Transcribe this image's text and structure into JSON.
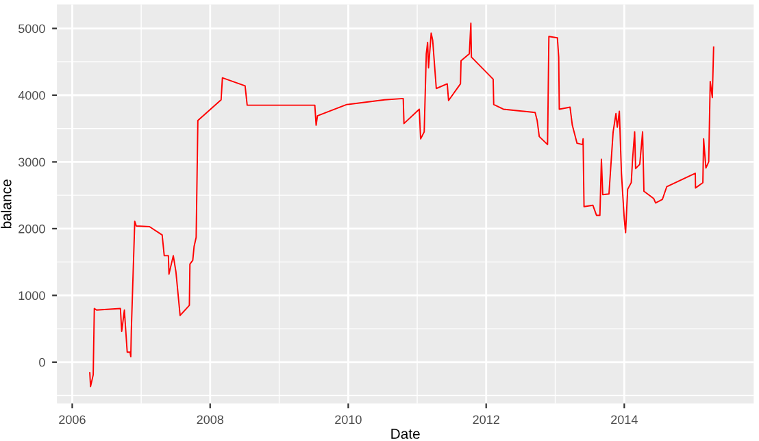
{
  "chart_data": {
    "type": "line",
    "xlabel": "Date",
    "ylabel": "balance",
    "xlim": [
      "2005-10-12",
      "2015-11-17"
    ],
    "ylim": [
      -620,
      5360
    ],
    "xticks": [
      {
        "value": "2006",
        "label": "2006"
      },
      {
        "value": "2008",
        "label": "2008"
      },
      {
        "value": "2010",
        "label": "2010"
      },
      {
        "value": "2012",
        "label": "2012"
      },
      {
        "value": "2014",
        "label": "2014"
      }
    ],
    "yticks": [
      0,
      1000,
      2000,
      3000,
      4000,
      5000
    ],
    "grid": true,
    "series": [
      {
        "color": "#ff0000",
        "x": [
          "2006-04-04",
          "2006-04-08",
          "2006-04-22",
          "2006-04-28",
          "2006-05-10",
          "2006-09-13",
          "2006-09-20",
          "2006-10-04",
          "2006-10-19",
          "2006-11-03",
          "2006-11-07",
          "2006-11-10",
          "2006-11-28",
          "2006-12-06",
          "2007-02-14",
          "2007-04-22",
          "2007-05-03",
          "2007-05-25",
          "2007-05-28",
          "2007-06-20",
          "2007-07-04",
          "2007-07-26",
          "2007-09-13",
          "2007-09-16",
          "2007-10-01",
          "2007-10-08",
          "2007-10-19",
          "2007-10-28",
          "2008-02-28",
          "2008-03-06",
          "2008-07-04",
          "2008-07-15",
          "2009-07-08",
          "2009-07-15",
          "2009-07-22",
          "2009-12-24",
          "2010-07-12",
          "2010-10-19",
          "2010-10-23",
          "2011-01-12",
          "2011-01-19",
          "2011-02-07",
          "2011-02-18",
          "2011-02-25",
          "2011-03-02",
          "2011-03-16",
          "2011-03-24",
          "2011-04-12",
          "2011-06-09",
          "2011-06-16",
          "2011-08-18",
          "2011-08-21",
          "2011-10-04",
          "2011-10-12",
          "2011-10-15",
          "2012-02-07",
          "2012-02-10",
          "2012-04-01",
          "2012-09-16",
          "2012-09-27",
          "2012-10-08",
          "2012-11-21",
          "2012-11-28",
          "2013-01-12",
          "2013-01-19",
          "2013-01-22",
          "2013-03-20",
          "2013-04-01",
          "2013-04-26",
          "2013-05-25",
          "2013-05-28",
          "2013-06-02",
          "2013-07-19",
          "2013-08-07",
          "2013-08-25",
          "2013-09-02",
          "2013-09-09",
          "2013-10-12",
          "2013-11-03",
          "2013-11-18",
          "2013-11-25",
          "2013-12-06",
          "2013-12-17",
          "2014-01-01",
          "2014-01-08",
          "2014-01-19",
          "2014-02-07",
          "2014-02-14",
          "2014-02-25",
          "2014-03-02",
          "2014-03-24",
          "2014-04-08",
          "2014-04-15",
          "2014-06-06",
          "2014-06-16",
          "2014-07-22",
          "2014-08-14",
          "2015-01-12",
          "2015-01-13",
          "2015-02-21",
          "2015-02-25",
          "2015-03-09",
          "2015-03-24",
          "2015-04-01",
          "2015-04-12",
          "2015-04-19"
        ],
        "values": [
          -158,
          -365,
          -190,
          804,
          780,
          804,
          460,
          780,
          150,
          150,
          82,
          495,
          2110,
          2040,
          2030,
          1905,
          1595,
          1595,
          1320,
          1595,
          1350,
          700,
          852,
          1470,
          1525,
          1732,
          1870,
          3620,
          3930,
          4260,
          4140,
          3850,
          3850,
          3550,
          3690,
          3860,
          3930,
          3950,
          3575,
          3790,
          3345,
          3450,
          4620,
          4790,
          4410,
          4930,
          4820,
          4100,
          4170,
          3920,
          4170,
          4515,
          4620,
          5080,
          4570,
          4240,
          3860,
          3790,
          3740,
          3620,
          3380,
          3260,
          4880,
          4860,
          4570,
          3790,
          3820,
          3550,
          3280,
          3260,
          3345,
          2330,
          2350,
          2200,
          2200,
          3040,
          2510,
          2520,
          3450,
          3725,
          3520,
          3760,
          2830,
          2145,
          1940,
          2590,
          2690,
          3040,
          3450,
          2900,
          2965,
          3450,
          2560,
          2450,
          2385,
          2440,
          2630,
          2830,
          2610,
          2690,
          3345,
          2910,
          3000,
          4205,
          3965,
          4720
        ]
      }
    ]
  }
}
